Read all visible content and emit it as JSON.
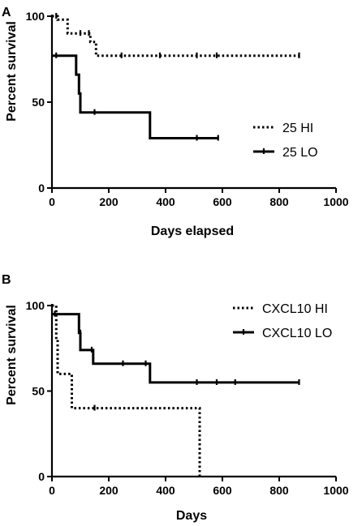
{
  "chart_data": [
    {
      "type": "line",
      "panel": "A",
      "xlabel": "Days elapsed",
      "ylabel": "Percent survival",
      "xlim": [
        0,
        1000
      ],
      "ylim": [
        0,
        100
      ],
      "xticks": [
        0,
        200,
        400,
        600,
        800,
        1000
      ],
      "yticks": [
        0,
        50,
        100
      ],
      "legend_position": "right",
      "series": [
        {
          "name": "25 HI",
          "style": "dotted",
          "steps": [
            [
              0,
              100
            ],
            [
              20,
              100
            ],
            [
              20,
              98
            ],
            [
              55,
              98
            ],
            [
              55,
              90
            ],
            [
              135,
              90
            ],
            [
              135,
              85
            ],
            [
              155,
              85
            ],
            [
              155,
              77
            ],
            [
              870,
              77
            ]
          ],
          "censored": [
            [
              15,
              100
            ],
            [
              100,
              90
            ],
            [
              130,
              90
            ],
            [
              245,
              77
            ],
            [
              380,
              77
            ],
            [
              510,
              77
            ],
            [
              580,
              77
            ],
            [
              870,
              77
            ]
          ]
        },
        {
          "name": "25 LO",
          "style": "solid",
          "steps": [
            [
              0,
              77
            ],
            [
              85,
              77
            ],
            [
              85,
              66
            ],
            [
              95,
              66
            ],
            [
              95,
              55
            ],
            [
              100,
              55
            ],
            [
              100,
              44
            ],
            [
              345,
              44
            ],
            [
              345,
              29
            ],
            [
              585,
              29
            ]
          ],
          "censored": [
            [
              15,
              77
            ],
            [
              150,
              44
            ],
            [
              510,
              29
            ],
            [
              585,
              29
            ]
          ]
        }
      ]
    },
    {
      "type": "line",
      "panel": "B",
      "xlabel": "Days",
      "ylabel": "Percent survival",
      "xlim": [
        0,
        1000
      ],
      "ylim": [
        0,
        100
      ],
      "xticks": [
        0,
        200,
        400,
        600,
        800,
        1000
      ],
      "yticks": [
        0,
        50,
        100
      ],
      "legend_position": "top-right",
      "series": [
        {
          "name": "CXCL10 HI",
          "style": "dotted",
          "steps": [
            [
              0,
              100
            ],
            [
              15,
              100
            ],
            [
              15,
              80
            ],
            [
              20,
              80
            ],
            [
              20,
              60
            ],
            [
              70,
              60
            ],
            [
              70,
              40
            ],
            [
              520,
              40
            ],
            [
              520,
              0
            ]
          ],
          "censored": [
            [
              150,
              40
            ]
          ]
        },
        {
          "name": "CXCL10 LO",
          "style": "solid",
          "steps": [
            [
              0,
              95
            ],
            [
              95,
              95
            ],
            [
              95,
              84
            ],
            [
              100,
              84
            ],
            [
              100,
              74
            ],
            [
              145,
              74
            ],
            [
              145,
              66
            ],
            [
              345,
              66
            ],
            [
              345,
              55
            ],
            [
              870,
              55
            ]
          ],
          "censored": [
            [
              10,
              95
            ],
            [
              100,
              84
            ],
            [
              140,
              74
            ],
            [
              250,
              66
            ],
            [
              330,
              66
            ],
            [
              510,
              55
            ],
            [
              580,
              55
            ],
            [
              645,
              55
            ],
            [
              870,
              55
            ]
          ]
        }
      ]
    }
  ]
}
